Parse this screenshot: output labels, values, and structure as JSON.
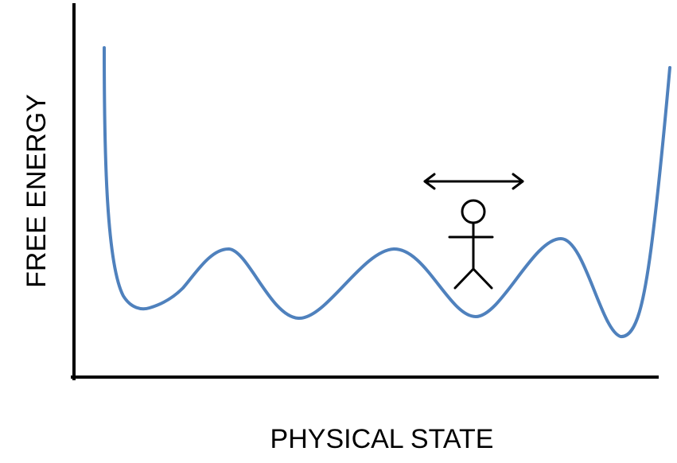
{
  "diagram": {
    "y_axis_label": "FREE ENERGY",
    "x_axis_label": "PHYSICAL STATE",
    "colors": {
      "curve": "#4f81bd",
      "axes": "#000000",
      "figure": "#000000",
      "background": "#ffffff"
    },
    "elements": {
      "curve": "free-energy-landscape-curve",
      "figure": "stick-figure-icon",
      "arrow": "double-headed-arrow-icon"
    }
  }
}
